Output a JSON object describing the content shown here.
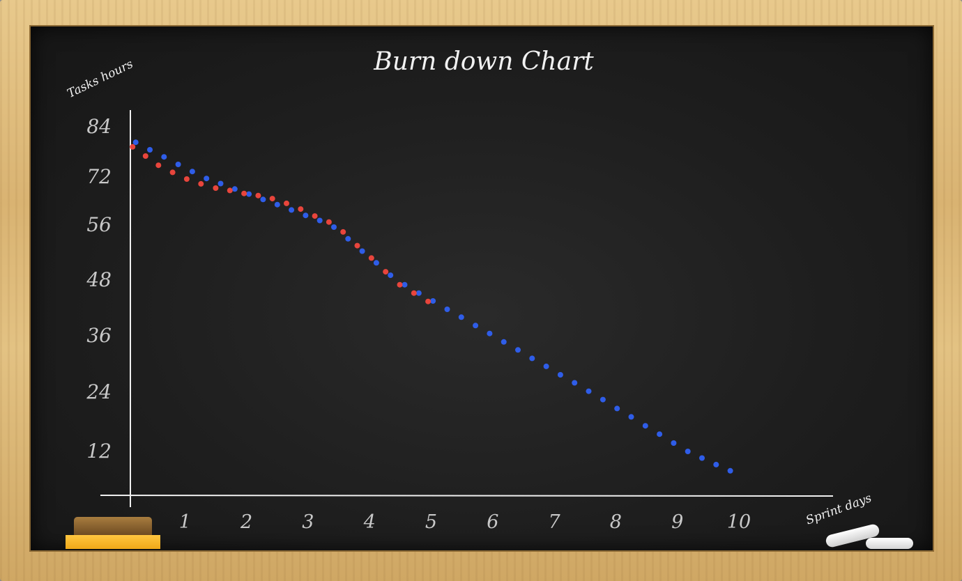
{
  "chart_data": {
    "type": "scatter",
    "title": "Burn down Chart",
    "ylabel": "Tasks hours",
    "xlabel": "Sprint days",
    "x_ticks": [
      "1",
      "2",
      "3",
      "4",
      "5",
      "6",
      "7",
      "8",
      "9",
      "10"
    ],
    "y_ticks": [
      "84",
      "72",
      "56",
      "48",
      "36",
      "24",
      "12"
    ],
    "xlim": [
      0,
      10
    ],
    "grid": false,
    "legend": "none",
    "series": [
      {
        "color": "#2f5de8",
        "x": [
          0.2,
          0.43,
          0.66,
          0.89,
          1.12,
          1.35,
          1.58,
          1.81,
          2.04,
          2.27,
          2.5,
          2.73,
          2.96,
          3.19,
          3.42,
          3.65,
          3.88,
          4.11,
          4.34,
          4.57,
          4.8,
          5.03,
          5.26,
          5.49,
          5.72,
          5.95,
          6.18,
          6.41,
          6.64,
          6.87,
          7.1,
          7.33,
          7.56,
          7.79,
          8.02,
          8.25,
          8.48,
          8.71,
          8.94,
          9.17,
          9.4,
          9.63,
          9.86
        ],
        "y": [
          80.3,
          78.5,
          76.8,
          75,
          73.3,
          71.5,
          69.8,
          68,
          66.3,
          64.5,
          62.8,
          61,
          59.2,
          57.5,
          55.7,
          54,
          52.2,
          50.5,
          48.7,
          47,
          45.2,
          43.5,
          41.7,
          40,
          38.2,
          36.5,
          34.7,
          33,
          31.2,
          29.5,
          27.7,
          26,
          24.2,
          22.5,
          20.7,
          19,
          17.2,
          15.5,
          13.7,
          12,
          10.2,
          8.4,
          6.7
        ]
      },
      {
        "color": "#e8453c",
        "x": [
          0.15,
          0.36,
          0.57,
          0.8,
          1.03,
          1.26,
          1.5,
          1.73,
          1.96,
          2.19,
          2.42,
          2.65,
          2.88,
          3.11,
          3.34,
          3.57,
          3.8,
          4.03,
          4.26,
          4.49,
          4.72,
          4.95
        ],
        "y": [
          79.2,
          77,
          74.8,
          73.1,
          71.3,
          69.7,
          68.3,
          67.5,
          66.5,
          65.8,
          64.8,
          63.2,
          61.3,
          59,
          57,
          55,
          53,
          51.2,
          49.2,
          47,
          45.2,
          43.4
        ]
      }
    ]
  }
}
